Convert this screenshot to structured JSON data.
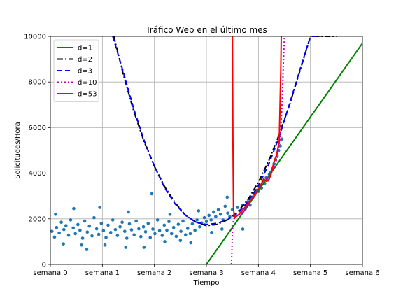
{
  "chart_data": {
    "type": "scatter",
    "title": "Tráfico Web en el último mes",
    "xlabel": "Tiempo",
    "ylabel": "Solicitudes/Hora",
    "xlim": [
      0,
      6
    ],
    "ylim": [
      0,
      10000
    ],
    "grid": true,
    "legend_position": "top-left",
    "x_ticks": [
      {
        "value": 0,
        "label": "semana 0"
      },
      {
        "value": 1,
        "label": "semana 1"
      },
      {
        "value": 2,
        "label": "semana 2"
      },
      {
        "value": 3,
        "label": "semana 3"
      },
      {
        "value": 4,
        "label": "semana 4"
      },
      {
        "value": 5,
        "label": "semana 5"
      },
      {
        "value": 6,
        "label": "semana 6"
      }
    ],
    "y_ticks": [
      {
        "value": 0,
        "label": "0"
      },
      {
        "value": 2000,
        "label": "2000"
      },
      {
        "value": 4000,
        "label": "4000"
      },
      {
        "value": 6000,
        "label": "6000"
      },
      {
        "value": 8000,
        "label": "8000"
      },
      {
        "value": 10000,
        "label": "10000"
      }
    ],
    "scatter": {
      "color": "#1f77b4",
      "points": [
        [
          0.03,
          1450
        ],
        [
          0.08,
          1200
        ],
        [
          0.12,
          1620
        ],
        [
          0.17,
          1380
        ],
        [
          0.21,
          1850
        ],
        [
          0.26,
          1530
        ],
        [
          0.3,
          1700
        ],
        [
          0.35,
          1280
        ],
        [
          0.39,
          1950
        ],
        [
          0.44,
          1600
        ],
        [
          0.48,
          1350
        ],
        [
          0.53,
          1750
        ],
        [
          0.57,
          1500
        ],
        [
          0.62,
          1150
        ],
        [
          0.66,
          1900
        ],
        [
          0.71,
          1420
        ],
        [
          0.75,
          1680
        ],
        [
          0.8,
          1250
        ],
        [
          0.84,
          2050
        ],
        [
          0.89,
          1560
        ],
        [
          0.93,
          1320
        ],
        [
          0.98,
          1800
        ],
        [
          1.02,
          1480
        ],
        [
          1.07,
          1180
        ],
        [
          1.11,
          1720
        ],
        [
          1.16,
          1400
        ],
        [
          1.2,
          1950
        ],
        [
          1.25,
          1530
        ],
        [
          1.29,
          1270
        ],
        [
          1.34,
          1650
        ],
        [
          1.38,
          1850
        ],
        [
          1.43,
          1450
        ],
        [
          1.47,
          1150
        ],
        [
          1.52,
          1780
        ],
        [
          1.56,
          1520
        ],
        [
          1.61,
          1300
        ],
        [
          1.65,
          1900
        ],
        [
          1.7,
          1560
        ],
        [
          1.74,
          1220
        ],
        [
          1.79,
          1650
        ],
        [
          1.83,
          1430
        ],
        [
          1.88,
          1800
        ],
        [
          1.92,
          1180
        ],
        [
          1.97,
          1550
        ],
        [
          2.01,
          1350
        ],
        [
          2.06,
          1950
        ],
        [
          2.1,
          1480
        ],
        [
          2.15,
          1270
        ],
        [
          2.19,
          1720
        ],
        [
          2.24,
          1500
        ],
        [
          2.28,
          1880
        ],
        [
          2.33,
          1350
        ],
        [
          2.37,
          1620
        ],
        [
          2.42,
          1230
        ],
        [
          2.46,
          1760
        ],
        [
          2.51,
          1450
        ],
        [
          2.55,
          1900
        ],
        [
          2.6,
          1300
        ],
        [
          2.64,
          1580
        ],
        [
          2.69,
          1350
        ],
        [
          2.73,
          1780
        ],
        [
          2.78,
          1500
        ],
        [
          2.82,
          1950
        ],
        [
          2.87,
          1650
        ],
        [
          2.91,
          1820
        ],
        [
          2.96,
          2050
        ],
        [
          3.0,
          1880
        ],
        [
          3.05,
          2150
        ],
        [
          3.09,
          1950
        ],
        [
          3.14,
          2300
        ],
        [
          3.18,
          2100
        ],
        [
          3.23,
          2400
        ],
        [
          3.27,
          2200
        ],
        [
          3.32,
          1950
        ],
        [
          3.36,
          2550
        ],
        [
          3.41,
          2250
        ],
        [
          3.45,
          2100
        ],
        [
          3.5,
          2400
        ],
        [
          3.55,
          2200
        ],
        [
          3.6,
          2500
        ],
        [
          3.65,
          2350
        ],
        [
          3.7,
          2600
        ],
        [
          3.75,
          2450
        ],
        [
          3.8,
          2750
        ],
        [
          3.84,
          2600
        ],
        [
          3.88,
          2950
        ],
        [
          3.92,
          3100
        ],
        [
          3.96,
          3250
        ],
        [
          4.0,
          3200
        ],
        [
          4.03,
          3450
        ],
        [
          4.06,
          3350
        ],
        [
          4.09,
          3650
        ],
        [
          4.12,
          3550
        ],
        [
          4.15,
          3800
        ],
        [
          4.18,
          3700
        ],
        [
          4.21,
          3950
        ],
        [
          4.24,
          4050
        ],
        [
          4.27,
          4200
        ],
        [
          4.3,
          4400
        ],
        [
          4.33,
          4600
        ],
        [
          4.36,
          4750
        ],
        [
          4.39,
          5000
        ],
        [
          4.42,
          5200
        ],
        [
          4.45,
          5500
        ],
        [
          0.1,
          2200
        ],
        [
          0.45,
          2450
        ],
        [
          0.95,
          2500
        ],
        [
          1.5,
          2300
        ],
        [
          1.95,
          3100
        ],
        [
          2.3,
          2200
        ],
        [
          2.85,
          2350
        ],
        [
          3.4,
          2950
        ],
        [
          3.7,
          1550
        ],
        [
          3.3,
          1550
        ],
        [
          0.25,
          900
        ],
        [
          0.6,
          850
        ],
        [
          1.05,
          850
        ],
        [
          1.8,
          750
        ],
        [
          2.5,
          1050
        ],
        [
          2.7,
          950
        ],
        [
          0.7,
          650
        ],
        [
          1.45,
          750
        ],
        [
          2.2,
          1000
        ],
        [
          3.1,
          1400
        ]
      ]
    },
    "series": [
      {
        "name": "d=1",
        "color": "#008000",
        "dash": "",
        "width": 2,
        "x": [
          3.0,
          6.0
        ],
        "y": [
          0,
          9700
        ]
      },
      {
        "name": "d=2",
        "color": "#000000",
        "dash": "8 3 2 3",
        "width": 2,
        "x": [
          1.22,
          1.4,
          1.6,
          1.8,
          2.0,
          2.2,
          2.4,
          2.6,
          2.8,
          3.0,
          3.2,
          3.4,
          3.6,
          3.8,
          4.0,
          4.2,
          4.4,
          4.6,
          4.8,
          5.0,
          5.2,
          5.4,
          5.5
        ],
        "y": [
          10000,
          8350,
          6750,
          5400,
          4300,
          3400,
          2700,
          2150,
          1850,
          1700,
          1750,
          1950,
          2300,
          2850,
          3600,
          4550,
          5700,
          7000,
          8500,
          10000,
          10000,
          10000,
          10000
        ]
      },
      {
        "name": "d=3",
        "color": "#0000ff",
        "dash": "7 4",
        "width": 2,
        "x": [
          1.2,
          1.4,
          1.6,
          1.8,
          2.0,
          2.2,
          2.4,
          2.6,
          2.8,
          3.0,
          3.2,
          3.4,
          3.6,
          3.8,
          4.0,
          4.2,
          4.4,
          4.6,
          4.8,
          5.0,
          5.2
        ],
        "y": [
          10000,
          8450,
          6850,
          5450,
          4300,
          3350,
          2650,
          2150,
          1850,
          1750,
          1800,
          1950,
          2250,
          2750,
          3450,
          4400,
          5600,
          7050,
          8550,
          10000,
          10000
        ]
      },
      {
        "name": "d=10",
        "color": "#bf00bf",
        "dash": "2 3",
        "width": 2,
        "x": [
          3.48,
          3.49,
          3.5,
          3.52,
          3.56,
          3.62,
          3.7,
          3.8,
          3.9,
          4.0,
          4.1,
          4.2,
          4.3,
          4.36,
          4.42,
          4.46,
          4.48,
          4.5
        ],
        "y": [
          0,
          500,
          1400,
          1950,
          2100,
          2150,
          2300,
          2550,
          2900,
          3300,
          3700,
          3850,
          4200,
          4700,
          5600,
          7200,
          8800,
          10000
        ]
      },
      {
        "name": "d=53",
        "color": "#ff0000",
        "dash": "",
        "width": 2,
        "x": [
          3.5,
          3.51,
          3.52,
          3.54,
          3.56,
          3.6,
          3.65,
          3.7,
          3.8,
          3.9,
          4.0,
          4.05,
          4.1,
          4.15,
          4.2,
          4.25,
          4.3,
          4.35,
          4.4,
          4.43,
          4.44
        ],
        "y": [
          10000,
          5600,
          2500,
          2050,
          2100,
          2150,
          2250,
          2400,
          2650,
          2950,
          3300,
          3500,
          3750,
          3650,
          3700,
          4000,
          4500,
          4800,
          5400,
          8500,
          10000
        ]
      }
    ]
  }
}
